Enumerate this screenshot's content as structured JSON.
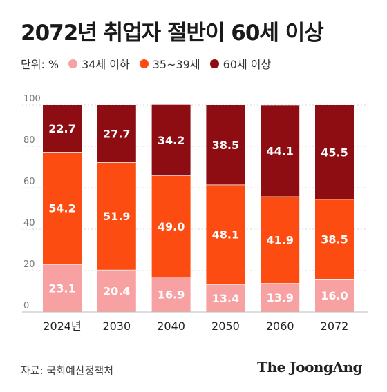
{
  "title": "2072년 취업자 절반이 60세 이상",
  "legend": {
    "unit": "단위: %",
    "items": [
      {
        "label": "34세 이하",
        "color": "#f7a1a3"
      },
      {
        "label": "35~39세",
        "color": "#fc4c12"
      },
      {
        "label": "60세 이상",
        "color": "#8d0d13"
      }
    ]
  },
  "chart_data": {
    "type": "bar",
    "stacked": true,
    "categories": [
      "2024년",
      "2030",
      "2040",
      "2050",
      "2060",
      "2072"
    ],
    "series": [
      {
        "name": "34세 이하",
        "color": "#f7a1a3",
        "values": [
          23.1,
          20.4,
          16.9,
          13.4,
          13.9,
          16.0
        ]
      },
      {
        "name": "35~39세",
        "color": "#fc4c12",
        "values": [
          54.2,
          51.9,
          49.0,
          48.1,
          41.9,
          38.5
        ]
      },
      {
        "name": "60세 이상",
        "color": "#8d0d13",
        "values": [
          22.7,
          27.7,
          34.2,
          38.5,
          44.1,
          45.5
        ]
      }
    ],
    "value_labels": [
      [
        "23.1",
        "20.4",
        "16.9",
        "13.4",
        "13.9",
        "16.0"
      ],
      [
        "54.2",
        "51.9",
        "49.0",
        "48.1",
        "41.9",
        "38.5"
      ],
      [
        "22.7",
        "27.7",
        "34.2",
        "38.5",
        "44.1",
        "45.5"
      ]
    ],
    "y_ticks": [
      "0",
      "20",
      "40",
      "60",
      "80",
      "100"
    ],
    "ylim": [
      0,
      100
    ],
    "grid": true
  },
  "footer": {
    "source": "자료: 국회예산정책처",
    "brand": "The JoongAng"
  }
}
